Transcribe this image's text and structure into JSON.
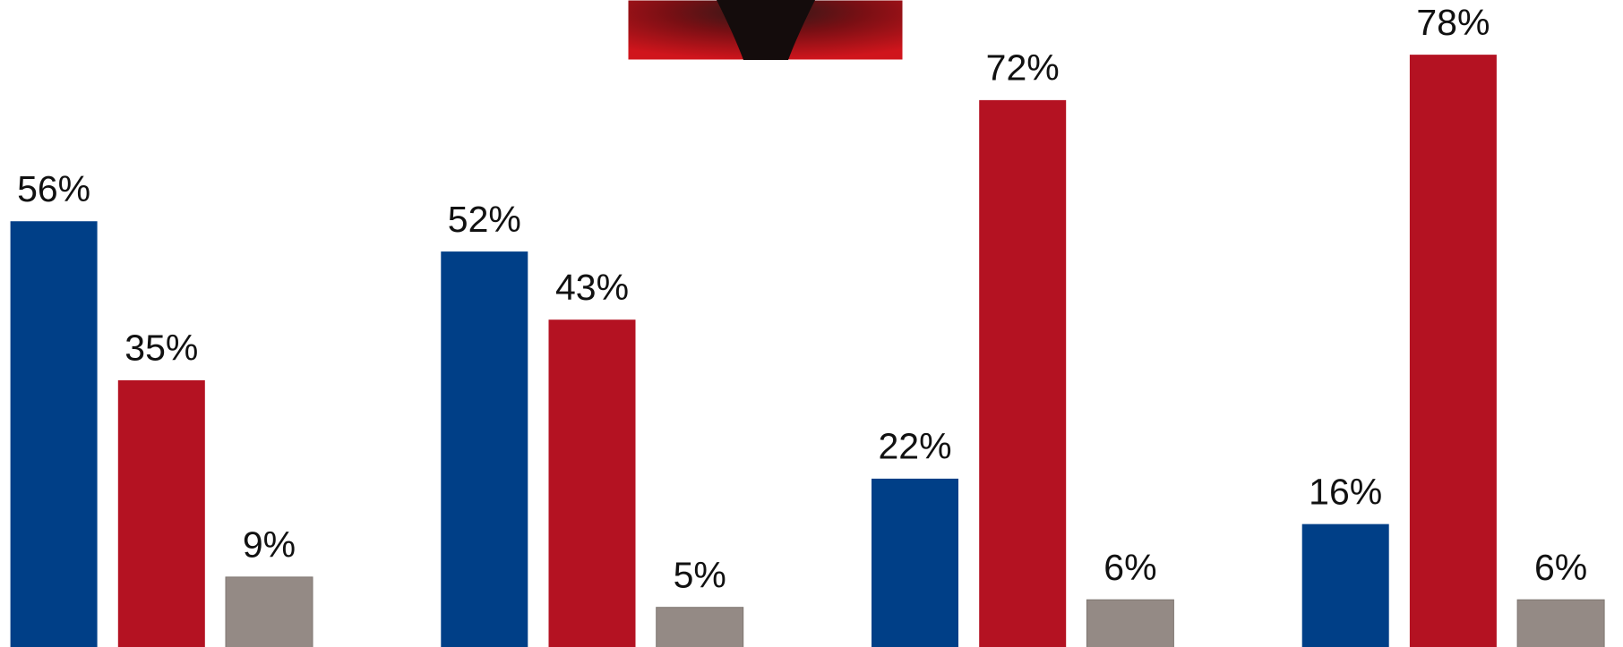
{
  "chart_data": {
    "type": "bar",
    "categories": [
      null,
      null,
      null,
      null
    ],
    "series": [
      {
        "color": "#003f87",
        "values": [
          56,
          52,
          22,
          16
        ],
        "value_labels": [
          "56%",
          "52%",
          "22%",
          "16%"
        ]
      },
      {
        "color": "#b41222",
        "values": [
          35,
          43,
          72,
          78
        ],
        "value_labels": [
          "35%",
          "43%",
          "72%",
          "78%"
        ]
      },
      {
        "color": "#948a85",
        "values": [
          9,
          5,
          6,
          6
        ],
        "value_labels": [
          "9%",
          "5%",
          "6%",
          "6%"
        ]
      }
    ]
  }
}
